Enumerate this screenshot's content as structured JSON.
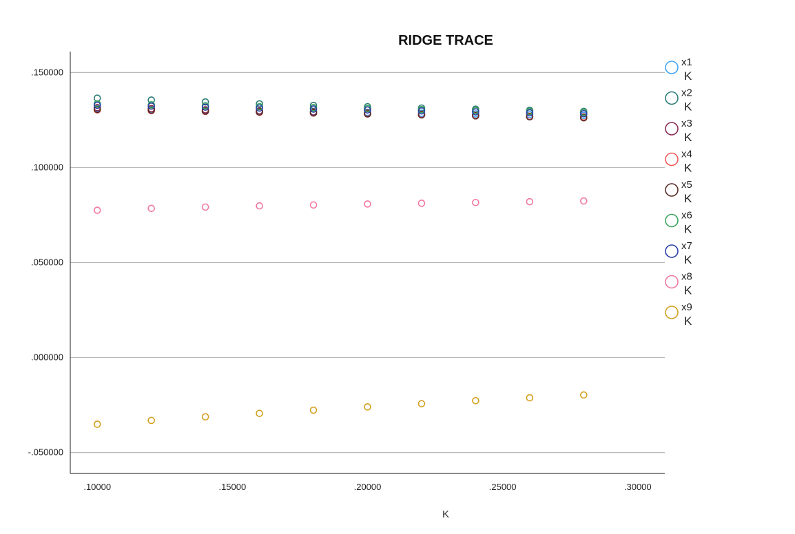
{
  "chart_data": {
    "type": "scatter",
    "title": "RIDGE TRACE",
    "xlabel": "K",
    "ylabel": "",
    "xlim": [
      0.09,
      0.31
    ],
    "ylim": [
      -0.061,
      0.161
    ],
    "x_ticks": [
      0.1,
      0.15,
      0.2,
      0.25,
      0.3
    ],
    "x_tick_labels": [
      ".10000",
      ".15000",
      ".20000",
      ".25000",
      ".30000"
    ],
    "y_ticks": [
      0.15,
      0.1,
      0.05,
      0.0,
      -0.05
    ],
    "y_tick_labels": [
      ".150000",
      ".100000",
      ".050000",
      ".000000",
      "-.050000"
    ],
    "grid": "horizontal",
    "legend_position": "right",
    "x": [
      0.1,
      0.12,
      0.14,
      0.16,
      0.18,
      0.2,
      0.22,
      0.24,
      0.26,
      0.28
    ],
    "series": [
      {
        "name": "x1",
        "sublabel": "K",
        "color": "#42a5f5",
        "values": [
          0.131,
          0.1306,
          0.1302,
          0.1298,
          0.1294,
          0.129,
          0.1286,
          0.1282,
          0.1278,
          0.1274
        ]
      },
      {
        "name": "x2",
        "sublabel": "K",
        "color": "#2e7d78",
        "values": [
          0.1365,
          0.1355,
          0.1345,
          0.1335,
          0.1327,
          0.132,
          0.1313,
          0.1307,
          0.1301,
          0.1295
        ]
      },
      {
        "name": "x3",
        "sublabel": "K",
        "color": "#8b2a52",
        "values": [
          0.1315,
          0.131,
          0.1304,
          0.1298,
          0.1292,
          0.1286,
          0.128,
          0.1274,
          0.1268,
          0.1262
        ]
      },
      {
        "name": "x4",
        "sublabel": "K",
        "color": "#f25a5a",
        "values": [
          0.1303,
          0.1299,
          0.1295,
          0.1291,
          0.1287,
          0.1283,
          0.1278,
          0.1274,
          0.127,
          0.1266
        ]
      },
      {
        "name": "x5",
        "sublabel": "K",
        "color": "#5a2a25",
        "values": [
          0.1306,
          0.1302,
          0.1297,
          0.1292,
          0.1287,
          0.1282,
          0.1277,
          0.1272,
          0.1267,
          0.1262
        ]
      },
      {
        "name": "x6",
        "sublabel": "K",
        "color": "#3aa55a",
        "values": [
          0.1335,
          0.133,
          0.1325,
          0.132,
          0.1315,
          0.131,
          0.1305,
          0.13,
          0.1295,
          0.129
        ]
      },
      {
        "name": "x7",
        "sublabel": "K",
        "color": "#2a3ea8",
        "values": [
          0.1328,
          0.1323,
          0.1318,
          0.1313,
          0.1308,
          0.1303,
          0.1298,
          0.1293,
          0.1288,
          0.1283
        ]
      },
      {
        "name": "x8",
        "sublabel": "K",
        "color": "#f07aa0",
        "values": [
          0.0775,
          0.0785,
          0.0792,
          0.0798,
          0.0803,
          0.0808,
          0.0812,
          0.0816,
          0.082,
          0.0824
        ]
      },
      {
        "name": "x9",
        "sublabel": "K",
        "color": "#d4a020",
        "values": [
          -0.0351,
          -0.0331,
          -0.0312,
          -0.0294,
          -0.0277,
          -0.026,
          -0.0243,
          -0.0227,
          -0.0212,
          -0.0197
        ]
      }
    ]
  }
}
